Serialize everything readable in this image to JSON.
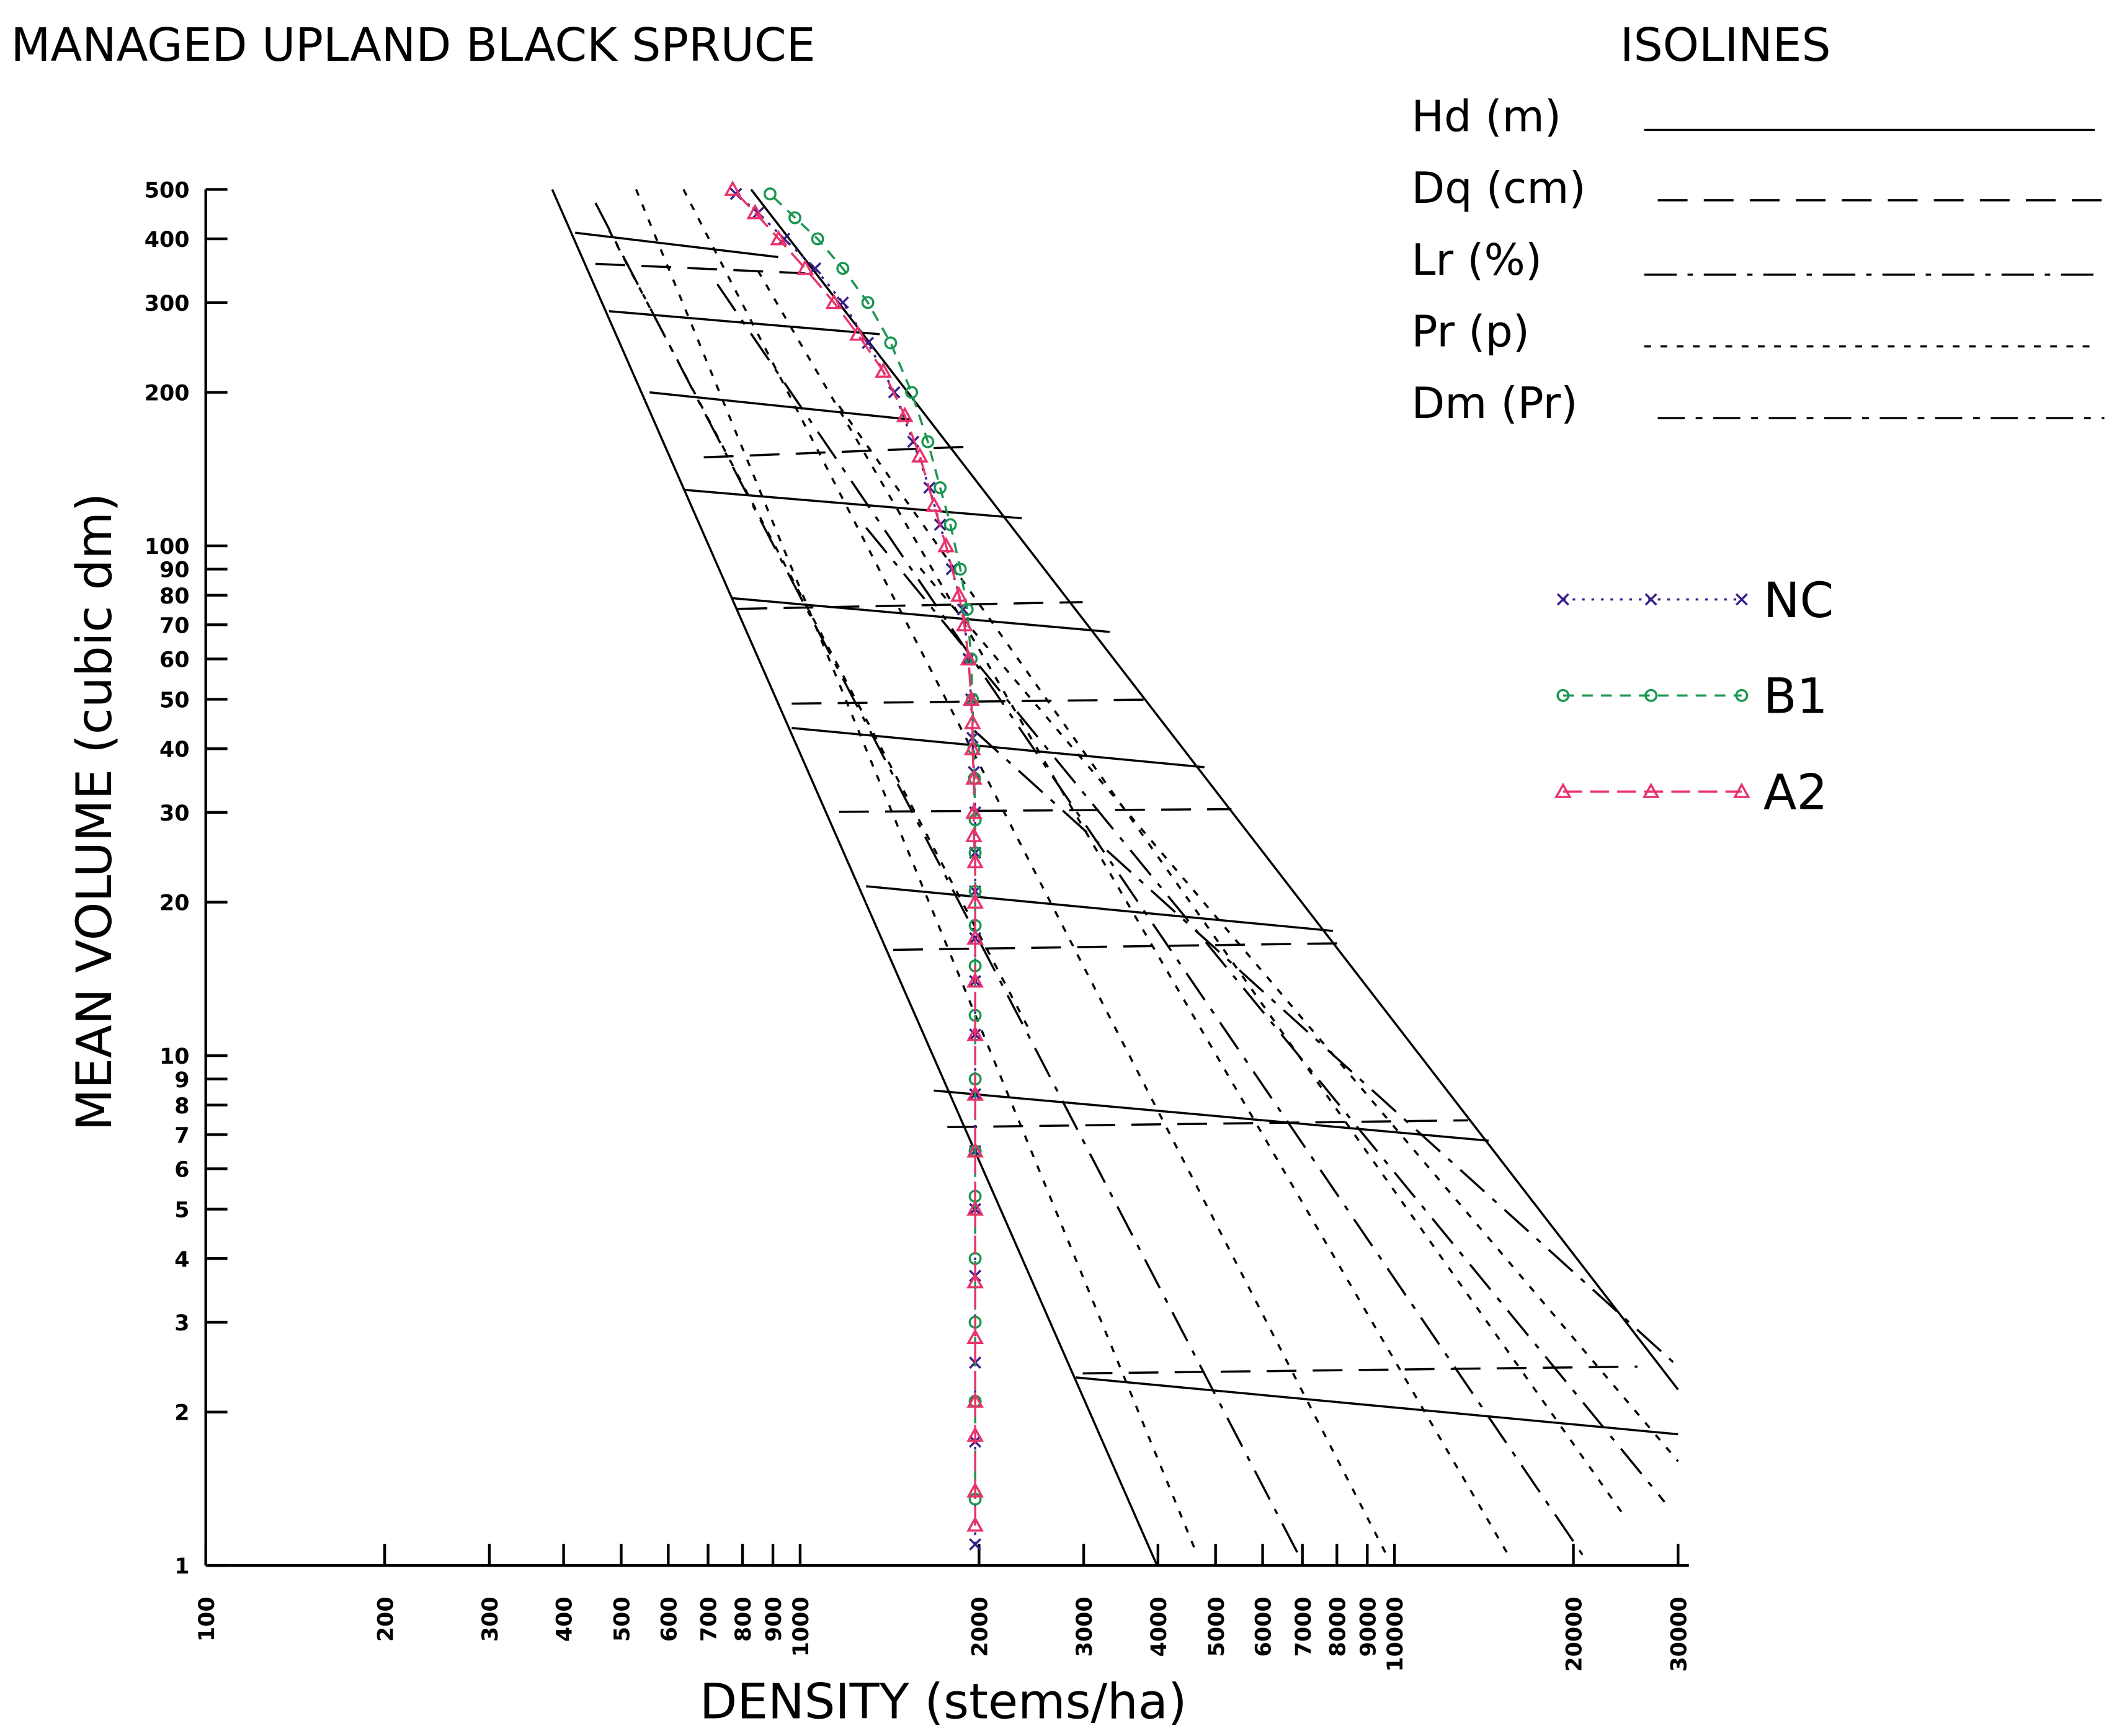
{
  "chart_data": {
    "type": "line",
    "title": "MANAGED UPLAND BLACK SPRUCE",
    "x_label": "DENSITY (stems/ha)",
    "y_label": "MEAN VOLUME (cubic dm)",
    "xlog": true,
    "ylog": true,
    "xlim": [
      100,
      30000
    ],
    "ylim": [
      1,
      500
    ],
    "xticks": [
      100,
      200,
      300,
      400,
      500,
      600,
      700,
      800,
      900,
      1000,
      2000,
      3000,
      4000,
      5000,
      6000,
      7000,
      8000,
      9000,
      10000,
      20000,
      30000
    ],
    "yticks": [
      1,
      2,
      3,
      4,
      5,
      6,
      7,
      8,
      9,
      10,
      20,
      30,
      40,
      50,
      60,
      70,
      80,
      90,
      100,
      200,
      300,
      400,
      500
    ],
    "isolines": {
      "title": "ISOLINES",
      "items": [
        "Hd (m)",
        "Dq (cm)",
        "Lr (%)",
        "Pr (p)",
        "Dm (Pr)"
      ]
    },
    "series": [
      {
        "name": "NC",
        "color": "#3a1d8a",
        "marker": "x",
        "x": [
          1970,
          1970,
          1970,
          1970,
          1970,
          1970,
          1970,
          1970,
          1970,
          1970,
          1970,
          1970,
          1970,
          1960,
          1950,
          1940,
          1920,
          1880,
          1800,
          1720,
          1650,
          1550,
          1440,
          1300,
          1180,
          1060,
          940,
          850,
          780
        ],
        "values": [
          1.1,
          1.75,
          2.5,
          3.7,
          5,
          6.5,
          8.4,
          11,
          14,
          17,
          21,
          25,
          30,
          36,
          42,
          50,
          60,
          75,
          90,
          110,
          130,
          160,
          200,
          250,
          300,
          350,
          400,
          450,
          490
        ]
      },
      {
        "name": "B1",
        "color": "#1a9650",
        "marker": "o",
        "x": [
          1970,
          1970,
          1970,
          1970,
          1970,
          1970,
          1970,
          1970,
          1970,
          1970,
          1970,
          1970,
          1970,
          1965,
          1960,
          1950,
          1940,
          1910,
          1860,
          1790,
          1720,
          1640,
          1540,
          1420,
          1300,
          1180,
          1070,
          980,
          890
        ],
        "values": [
          1.35,
          2.1,
          3,
          4,
          5.3,
          6.5,
          9,
          12,
          15,
          18,
          21,
          25,
          29,
          35,
          40,
          50,
          60,
          75,
          90,
          110,
          130,
          160,
          200,
          250,
          300,
          350,
          400,
          440,
          490
        ]
      },
      {
        "name": "A2",
        "color": "#e8336b",
        "marker": "^",
        "x": [
          1970,
          1970,
          1970,
          1970,
          1970,
          1970,
          1970,
          1970,
          1970,
          1970,
          1970,
          1970,
          1970,
          1970,
          1960,
          1960,
          1960,
          1950,
          1950,
          1940,
          1920,
          1890,
          1850,
          1760,
          1680,
          1590,
          1500,
          1380,
          1250,
          1140,
          1020,
          920,
          840,
          770
        ],
        "values": [
          1.2,
          1.4,
          1.8,
          2.1,
          2.8,
          3.6,
          5,
          6.5,
          8.4,
          11,
          14,
          17,
          20,
          24,
          27,
          30,
          35,
          40,
          45,
          50,
          60,
          70,
          80,
          100,
          120,
          150,
          180,
          220,
          260,
          300,
          350,
          400,
          450,
          500
        ]
      }
    ]
  }
}
